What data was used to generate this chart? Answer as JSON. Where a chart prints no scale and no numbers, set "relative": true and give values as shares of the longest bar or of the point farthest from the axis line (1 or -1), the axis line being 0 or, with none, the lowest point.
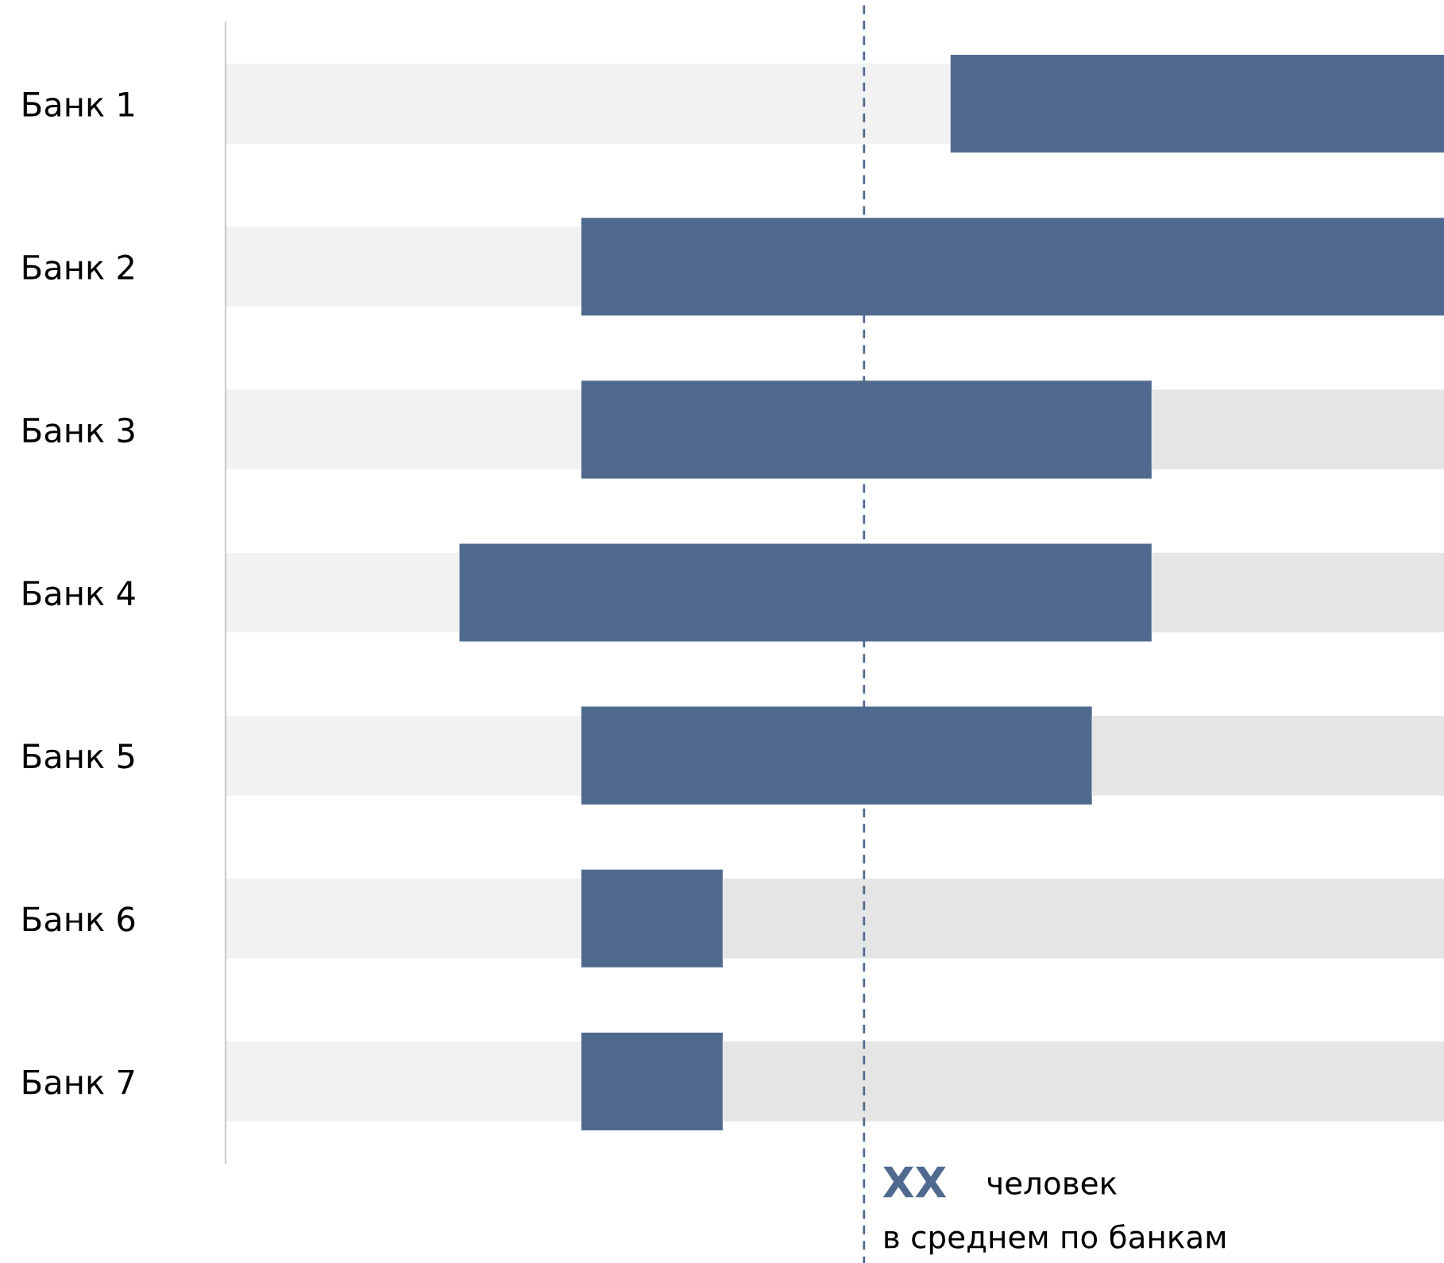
{
  "chart_data": {
    "type": "bar",
    "orientation": "horizontal",
    "relative": true,
    "stacked": true,
    "grid": false,
    "legend": false,
    "categories": [
      "Банк 1",
      "Банк 2",
      "Банк 3",
      "Банк 4",
      "Банк 5",
      "Банк 6",
      "Банк 7"
    ],
    "series": [
      {
        "color": "#f2f2f2",
        "values": [
          0.595,
          0.292,
          0.292,
          0.192,
          0.292,
          0.292,
          0.292
        ]
      },
      {
        "color": "#506a8f",
        "values": [
          0.405,
          0.708,
          0.468,
          0.568,
          0.419,
          0.116,
          0.116
        ]
      },
      {
        "color": "#e5e5e5",
        "values": [
          null,
          null,
          0.24,
          0.24,
          0.289,
          0.592,
          0.592
        ]
      }
    ],
    "ref_lines": [
      {
        "axis": "x",
        "value": 0.524,
        "label": "XX",
        "color": "#506a8f",
        "line_style": "dashed"
      }
    ],
    "annotations": [
      "человек\nв среднем по банкам"
    ]
  }
}
